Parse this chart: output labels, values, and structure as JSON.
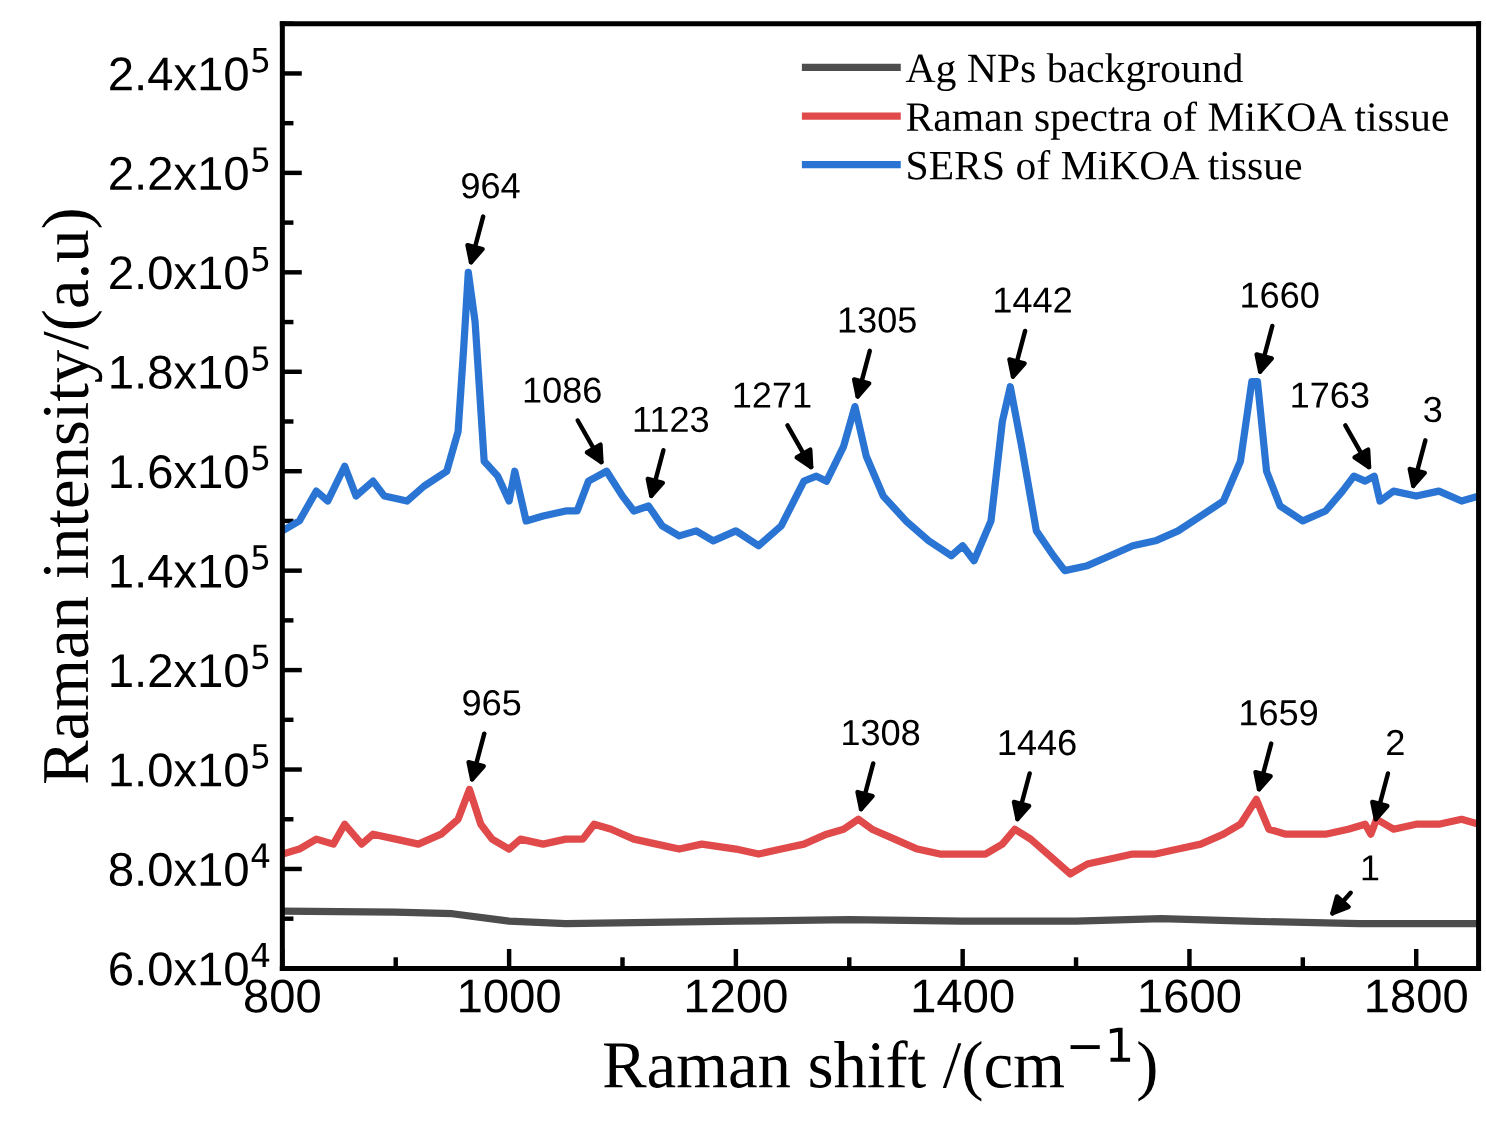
{
  "chart_data": {
    "type": "line",
    "xlabel": "Raman shift /(cm$^{−1}$)",
    "ylabel": "Raman intensity/(a.u)",
    "xlim": [
      800,
      1855
    ],
    "xticks": [
      800,
      1000,
      1200,
      1400,
      1600,
      1800
    ],
    "ylim": [
      60000,
      250000
    ],
    "yticks": [
      {
        "value": 60000,
        "label": "6.0x10$^{4}$"
      },
      {
        "value": 80000,
        "label": "8.0x10$^{4}$"
      },
      {
        "value": 100000,
        "label": "1.0x10$^{5}$"
      },
      {
        "value": 120000,
        "label": "1.2x10$^{5}$"
      },
      {
        "value": 140000,
        "label": "1.4x10$^{5}$"
      },
      {
        "value": 160000,
        "label": "1.6x10$^{5}$"
      },
      {
        "value": 180000,
        "label": "1.8x10$^{5}$"
      },
      {
        "value": 200000,
        "label": "2.0x10$^{5}$"
      },
      {
        "value": 220000,
        "label": "2.2x10$^{5}$"
      },
      {
        "value": 240000,
        "label": "2.4x10$^{5}$"
      }
    ],
    "legend": "top right",
    "grid": false,
    "marker": "none",
    "line_style": "solid",
    "series": [
      {
        "name": "Ag NPs background",
        "color": "#4d4d4d",
        "x": [
          800,
          900,
          950,
          1000,
          1050,
          1200,
          1300,
          1400,
          1500,
          1575,
          1650,
          1750,
          1855
        ],
        "values": [
          71500,
          71300,
          71000,
          69500,
          69000,
          69500,
          69800,
          69500,
          69500,
          70000,
          69500,
          69000,
          69000
        ]
      },
      {
        "name": "Raman spectra of MiKOA tissue",
        "color": "#e04a4a",
        "x": [
          800,
          815,
          830,
          845,
          855,
          870,
          880,
          900,
          920,
          940,
          955,
          965,
          975,
          985,
          1000,
          1010,
          1030,
          1050,
          1065,
          1075,
          1090,
          1110,
          1130,
          1150,
          1170,
          1200,
          1220,
          1240,
          1260,
          1280,
          1295,
          1308,
          1320,
          1340,
          1360,
          1380,
          1400,
          1420,
          1435,
          1446,
          1460,
          1480,
          1495,
          1510,
          1530,
          1550,
          1570,
          1590,
          1610,
          1630,
          1645,
          1659,
          1670,
          1685,
          1700,
          1720,
          1740,
          1755,
          1760,
          1765,
          1780,
          1800,
          1820,
          1840,
          1855
        ],
        "values": [
          83000,
          84000,
          86000,
          85000,
          89000,
          85000,
          87000,
          86000,
          85000,
          87000,
          90000,
          96000,
          89000,
          86000,
          84000,
          86000,
          85000,
          86000,
          86000,
          89000,
          88000,
          86000,
          85000,
          84000,
          85000,
          84000,
          83000,
          84000,
          85000,
          87000,
          88000,
          90000,
          88000,
          86000,
          84000,
          83000,
          83000,
          83000,
          85000,
          88000,
          86000,
          82000,
          79000,
          81000,
          82000,
          83000,
          83000,
          84000,
          85000,
          87000,
          89000,
          94000,
          88000,
          87000,
          87000,
          87000,
          88000,
          89000,
          87000,
          90000,
          88000,
          89000,
          89000,
          90000,
          89000
        ]
      },
      {
        "name": "SERS of MiKOA tissue",
        "color": "#2a75d3",
        "x": [
          800,
          815,
          830,
          840,
          855,
          865,
          880,
          890,
          910,
          925,
          945,
          955,
          960,
          964,
          970,
          978,
          990,
          1000,
          1005,
          1015,
          1030,
          1050,
          1060,
          1070,
          1086,
          1100,
          1110,
          1123,
          1135,
          1150,
          1165,
          1180,
          1200,
          1220,
          1240,
          1260,
          1271,
          1280,
          1295,
          1305,
          1315,
          1330,
          1350,
          1370,
          1390,
          1400,
          1410,
          1425,
          1435,
          1442,
          1452,
          1465,
          1480,
          1490,
          1510,
          1530,
          1550,
          1570,
          1590,
          1610,
          1630,
          1645,
          1655,
          1660,
          1668,
          1680,
          1700,
          1720,
          1735,
          1745,
          1755,
          1763,
          1768,
          1780,
          1800,
          1820,
          1840,
          1855
        ],
        "values": [
          148000,
          150000,
          156000,
          154000,
          161000,
          155000,
          158000,
          155000,
          154000,
          157000,
          160000,
          168000,
          185000,
          200000,
          190000,
          162000,
          159000,
          154000,
          160000,
          150000,
          151000,
          152000,
          152000,
          158000,
          160000,
          155000,
          152000,
          153000,
          149000,
          147000,
          148000,
          146000,
          148000,
          145000,
          149000,
          158000,
          159000,
          158000,
          165000,
          173000,
          163000,
          155000,
          150000,
          146000,
          143000,
          145000,
          142000,
          150000,
          170000,
          177000,
          165000,
          148000,
          143000,
          140000,
          141000,
          143000,
          145000,
          146000,
          148000,
          151000,
          154000,
          162000,
          178000,
          178000,
          160000,
          153000,
          150000,
          152000,
          156000,
          159000,
          158000,
          159000,
          154000,
          156000,
          155000,
          156000,
          154000,
          155000
        ]
      }
    ],
    "annotations": [
      {
        "text": "964",
        "x": 964,
        "y": 200000
      },
      {
        "text": "1086",
        "x": 1086,
        "y": 160000
      },
      {
        "text": "1123",
        "x": 1123,
        "y": 153000
      },
      {
        "text": "1271",
        "x": 1271,
        "y": 159000
      },
      {
        "text": "1305",
        "x": 1305,
        "y": 173000
      },
      {
        "text": "1442",
        "x": 1442,
        "y": 177000
      },
      {
        "text": "1660",
        "x": 1660,
        "y": 178000
      },
      {
        "text": "1763",
        "x": 1763,
        "y": 159000
      },
      {
        "text": "3",
        "x": 1795,
        "y": 155000
      },
      {
        "text": "965",
        "x": 965,
        "y": 96000
      },
      {
        "text": "1308",
        "x": 1308,
        "y": 90000
      },
      {
        "text": "1446",
        "x": 1446,
        "y": 88000
      },
      {
        "text": "1659",
        "x": 1659,
        "y": 94000
      },
      {
        "text": "2",
        "x": 1762,
        "y": 88000
      },
      {
        "text": "1",
        "x": 1720,
        "y": 69500
      }
    ]
  }
}
